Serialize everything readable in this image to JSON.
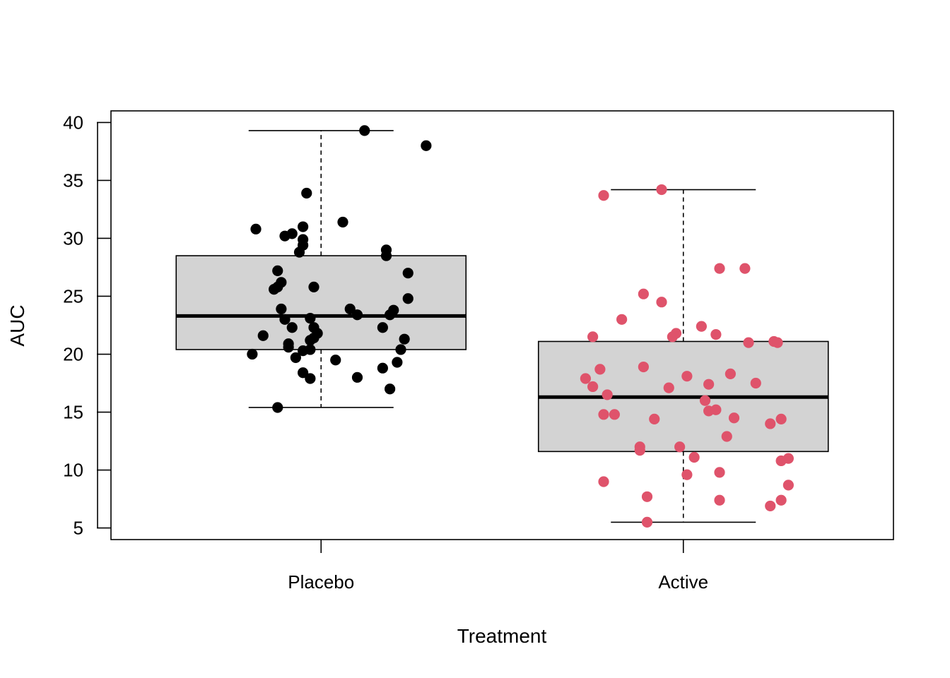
{
  "chart_data": {
    "type": "boxplot",
    "title": "",
    "xlabel": "Treatment",
    "ylabel": "AUC",
    "ylim": [
      4.0,
      41.0
    ],
    "yticks": [
      5,
      10,
      15,
      20,
      25,
      30,
      35,
      40
    ],
    "ytick_labels": [
      "5",
      "10",
      "15",
      "20",
      "25",
      "30",
      "35",
      "40"
    ],
    "categories": [
      "Placebo",
      "Active"
    ],
    "groups": [
      {
        "name": "Placebo",
        "color": "#000000",
        "box_fill": "#d3d3d3",
        "whisker_low": 15.4,
        "q1": 20.4,
        "median": 23.3,
        "q3": 28.5,
        "whisker_high": 39.3,
        "points": [
          {
            "x": 0.82,
            "y": 30.8
          },
          {
            "x": 0.9,
            "y": 30.2
          },
          {
            "x": 0.92,
            "y": 30.4
          },
          {
            "x": 0.94,
            "y": 28.8
          },
          {
            "x": 0.95,
            "y": 29.4
          },
          {
            "x": 0.95,
            "y": 29.9
          },
          {
            "x": 0.95,
            "y": 31.0
          },
          {
            "x": 0.96,
            "y": 33.9
          },
          {
            "x": 1.06,
            "y": 31.4
          },
          {
            "x": 1.12,
            "y": 39.3
          },
          {
            "x": 1.29,
            "y": 38.0
          },
          {
            "x": 0.88,
            "y": 27.2
          },
          {
            "x": 0.87,
            "y": 25.6
          },
          {
            "x": 0.88,
            "y": 25.8
          },
          {
            "x": 0.89,
            "y": 26.2
          },
          {
            "x": 0.98,
            "y": 25.8
          },
          {
            "x": 1.18,
            "y": 29.0
          },
          {
            "x": 1.18,
            "y": 28.5
          },
          {
            "x": 1.24,
            "y": 27.0
          },
          {
            "x": 1.24,
            "y": 24.8
          },
          {
            "x": 0.89,
            "y": 23.9
          },
          {
            "x": 0.9,
            "y": 23.0
          },
          {
            "x": 0.84,
            "y": 21.6
          },
          {
            "x": 0.92,
            "y": 22.3
          },
          {
            "x": 0.97,
            "y": 23.1
          },
          {
            "x": 0.98,
            "y": 22.3
          },
          {
            "x": 0.99,
            "y": 21.8
          },
          {
            "x": 0.98,
            "y": 21.4
          },
          {
            "x": 0.97,
            "y": 21.2
          },
          {
            "x": 1.08,
            "y": 23.9
          },
          {
            "x": 1.1,
            "y": 23.4
          },
          {
            "x": 1.19,
            "y": 23.4
          },
          {
            "x": 1.2,
            "y": 23.8
          },
          {
            "x": 1.17,
            "y": 22.3
          },
          {
            "x": 1.23,
            "y": 21.3
          },
          {
            "x": 0.81,
            "y": 20.0
          },
          {
            "x": 0.91,
            "y": 20.9
          },
          {
            "x": 0.91,
            "y": 20.6
          },
          {
            "x": 0.93,
            "y": 19.7
          },
          {
            "x": 0.95,
            "y": 20.3
          },
          {
            "x": 0.97,
            "y": 20.4
          },
          {
            "x": 1.04,
            "y": 19.5
          },
          {
            "x": 1.21,
            "y": 19.3
          },
          {
            "x": 1.22,
            "y": 20.4
          },
          {
            "x": 1.17,
            "y": 18.8
          },
          {
            "x": 0.95,
            "y": 18.4
          },
          {
            "x": 0.97,
            "y": 17.9
          },
          {
            "x": 1.1,
            "y": 18.0
          },
          {
            "x": 1.19,
            "y": 17.0
          },
          {
            "x": 0.88,
            "y": 15.4
          }
        ]
      },
      {
        "name": "Active",
        "color": "#DF536B",
        "box_fill": "#d3d3d3",
        "whisker_low": 5.5,
        "q1": 11.6,
        "median": 16.3,
        "q3": 21.1,
        "whisker_high": 34.2,
        "points": [
          {
            "x": 1.78,
            "y": 33.7
          },
          {
            "x": 1.94,
            "y": 34.2
          },
          {
            "x": 2.1,
            "y": 27.4
          },
          {
            "x": 2.17,
            "y": 27.4
          },
          {
            "x": 1.89,
            "y": 25.2
          },
          {
            "x": 1.94,
            "y": 24.5
          },
          {
            "x": 1.83,
            "y": 23.0
          },
          {
            "x": 2.05,
            "y": 22.4
          },
          {
            "x": 1.75,
            "y": 21.5
          },
          {
            "x": 1.97,
            "y": 21.5
          },
          {
            "x": 1.98,
            "y": 21.8
          },
          {
            "x": 2.09,
            "y": 21.7
          },
          {
            "x": 2.18,
            "y": 21.0
          },
          {
            "x": 2.25,
            "y": 21.1
          },
          {
            "x": 2.26,
            "y": 21.0
          },
          {
            "x": 1.77,
            "y": 18.7
          },
          {
            "x": 1.89,
            "y": 18.9
          },
          {
            "x": 2.01,
            "y": 18.1
          },
          {
            "x": 2.13,
            "y": 18.3
          },
          {
            "x": 1.73,
            "y": 17.9
          },
          {
            "x": 1.75,
            "y": 17.2
          },
          {
            "x": 1.96,
            "y": 17.1
          },
          {
            "x": 2.07,
            "y": 17.4
          },
          {
            "x": 2.2,
            "y": 17.5
          },
          {
            "x": 1.79,
            "y": 16.5
          },
          {
            "x": 2.06,
            "y": 16.0
          },
          {
            "x": 2.07,
            "y": 15.1
          },
          {
            "x": 2.09,
            "y": 15.2
          },
          {
            "x": 1.78,
            "y": 14.8
          },
          {
            "x": 1.81,
            "y": 14.8
          },
          {
            "x": 1.92,
            "y": 14.4
          },
          {
            "x": 2.14,
            "y": 14.5
          },
          {
            "x": 2.24,
            "y": 14.0
          },
          {
            "x": 2.27,
            "y": 14.4
          },
          {
            "x": 2.12,
            "y": 12.9
          },
          {
            "x": 1.88,
            "y": 12.0
          },
          {
            "x": 1.88,
            "y": 11.7
          },
          {
            "x": 1.99,
            "y": 12.0
          },
          {
            "x": 2.03,
            "y": 11.1
          },
          {
            "x": 2.27,
            "y": 10.8
          },
          {
            "x": 2.29,
            "y": 11.0
          },
          {
            "x": 2.01,
            "y": 9.6
          },
          {
            "x": 2.1,
            "y": 9.8
          },
          {
            "x": 1.78,
            "y": 9.0
          },
          {
            "x": 2.29,
            "y": 8.7
          },
          {
            "x": 1.9,
            "y": 7.7
          },
          {
            "x": 2.1,
            "y": 7.4
          },
          {
            "x": 2.27,
            "y": 7.4
          },
          {
            "x": 2.24,
            "y": 6.9
          },
          {
            "x": 1.9,
            "y": 5.5
          }
        ]
      }
    ]
  }
}
